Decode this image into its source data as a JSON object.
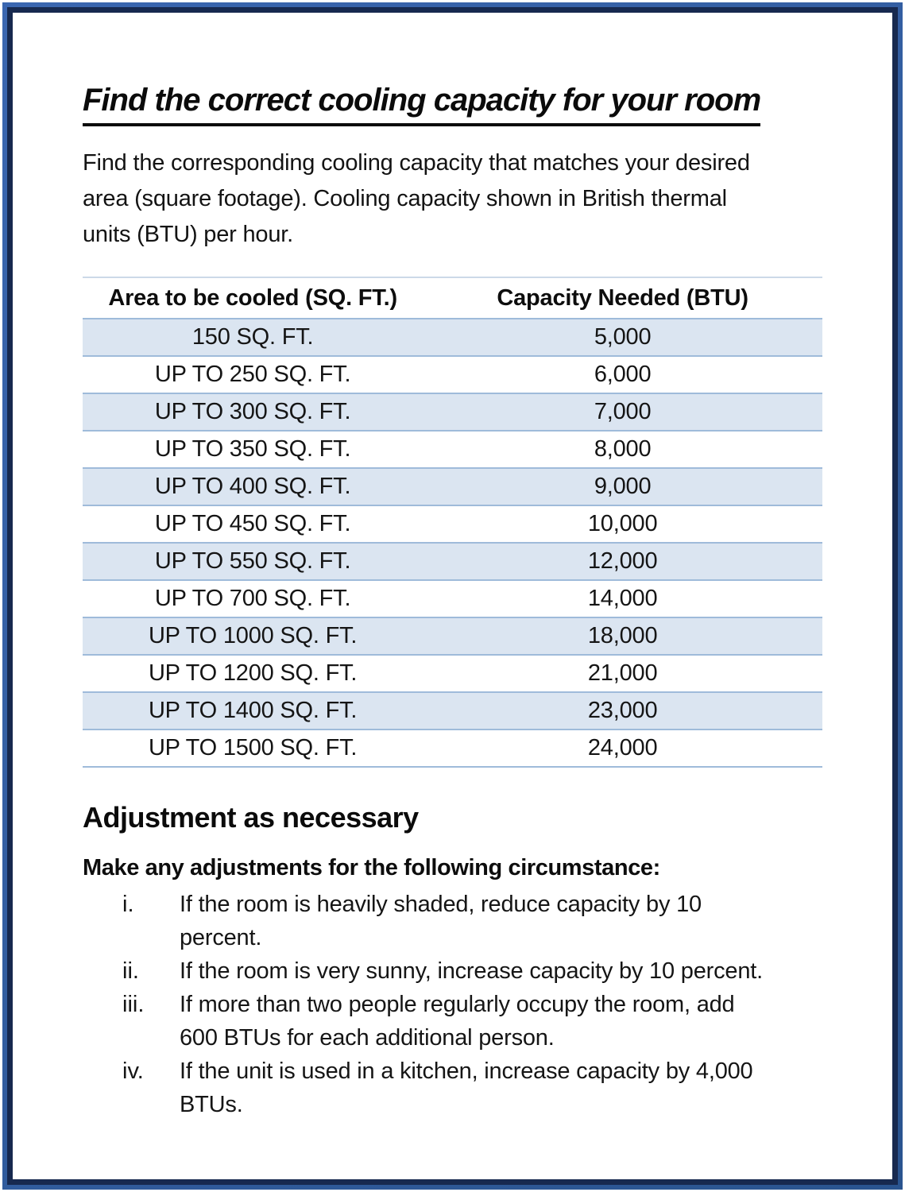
{
  "colors": {
    "frame_blue": "#2e5aa5",
    "frame_navy": "#17294f",
    "row_shade": "#dbe5f1",
    "table_border": "#9fbbda"
  },
  "header": {
    "title": "Find the correct cooling capacity for your room"
  },
  "intro": {
    "text": "Find the corresponding cooling capacity that matches your desired\narea (square footage). Cooling capacity shown in British thermal\nunits (BTU) per hour."
  },
  "table": {
    "headers": [
      "Area to be cooled (SQ. FT.)",
      "Capacity Needed (BTU)"
    ],
    "rows": [
      [
        "150 SQ. FT.",
        "5,000"
      ],
      [
        "UP TO 250 SQ. FT.",
        "6,000"
      ],
      [
        "UP TO 300 SQ. FT.",
        "7,000"
      ],
      [
        "UP TO 350 SQ. FT.",
        "8,000"
      ],
      [
        "UP TO 400 SQ. FT.",
        "9,000"
      ],
      [
        "UP TO 450 SQ. FT.",
        "10,000"
      ],
      [
        "UP TO 550 SQ. FT.",
        "12,000"
      ],
      [
        "UP TO 700 SQ. FT.",
        "14,000"
      ],
      [
        "UP TO 1000 SQ. FT.",
        "18,000"
      ],
      [
        "UP TO 1200 SQ. FT.",
        "21,000"
      ],
      [
        "UP TO 1400 SQ. FT.",
        "23,000"
      ],
      [
        "UP TO 1500 SQ. FT.",
        "24,000"
      ]
    ]
  },
  "adjustments": {
    "heading": "Adjustment as necessary",
    "lead": "Make any adjustments for the following circumstance:",
    "items": [
      {
        "marker": "i.",
        "text": "If the room is heavily shaded, reduce capacity by 10\npercent."
      },
      {
        "marker": "ii.",
        "text": "If the room is very sunny, increase capacity by 10 percent."
      },
      {
        "marker": "iii.",
        "text": "If more than two people regularly occupy the room, add\n600 BTUs for each additional person."
      },
      {
        "marker": "iv.",
        "text": "If the unit is used in a kitchen, increase capacity by 4,000\nBTUs."
      }
    ]
  }
}
